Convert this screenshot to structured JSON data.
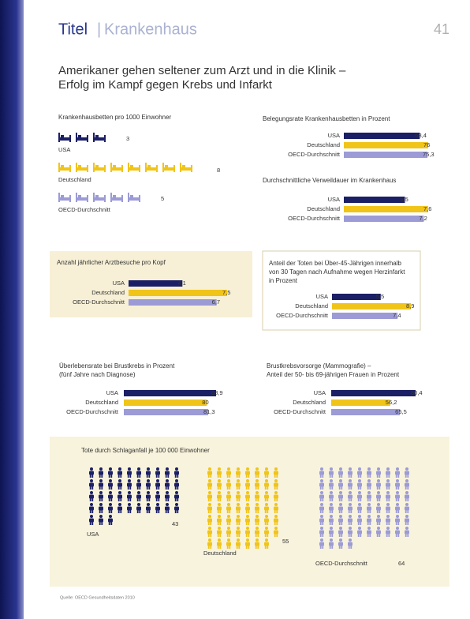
{
  "header": {
    "title": "Titel",
    "separator": "|",
    "section": "Krankenhaus",
    "page": "41"
  },
  "headline": [
    "Amerikaner gehen seltener zum Arzt und in die Klinik –",
    "Erfolg im Kampf gegen Krebs und Infarkt"
  ],
  "palette": [
    "#1b1f66",
    "#f0c419",
    "#9c9bd6"
  ],
  "chart_data": [
    {
      "type": "icons",
      "icon": "bed",
      "title": [
        "Krankenhausbetten pro 1000 Einwohner"
      ],
      "categories": [
        "USA",
        "Deutschland",
        "OECD-Durchschnitt"
      ],
      "values": [
        3,
        8,
        5
      ]
    },
    {
      "type": "bar",
      "title": [
        "Belegungsrate Krankenhausbetten in Prozent"
      ],
      "categories": [
        "USA",
        "Deutschland",
        "OECD-Durchschnitt"
      ],
      "values": [
        68.4,
        76,
        75.3
      ],
      "value_labels": [
        "68,4",
        "76",
        "75,3"
      ]
    },
    {
      "type": "bar",
      "title": [
        "Durchschnittliche Verweildauer im Krankenhaus"
      ],
      "categories": [
        "USA",
        "Deutschland",
        "OECD-Durchschnitt"
      ],
      "values": [
        5.5,
        7.6,
        7.2
      ],
      "value_labels": [
        "5,5",
        "7,6",
        "7,2"
      ]
    },
    {
      "type": "bar",
      "title": [
        "Anzahl jährlicher Arztbesuche pro Kopf"
      ],
      "categories": [
        "USA",
        "Deutschland",
        "OECD-Durchschnitt"
      ],
      "values": [
        4.1,
        7.5,
        6.7
      ],
      "value_labels": [
        "4,1",
        "7,5",
        "6,7"
      ]
    },
    {
      "type": "bar",
      "title": [
        "Anteil der Toten bei Über-45-Jährigen innerhalb",
        "von 30 Tagen nach Aufnahme wegen Herzinfarkt",
        "in Prozent"
      ],
      "categories": [
        "USA",
        "Deutschland",
        "OECD-Durchschnitt"
      ],
      "values": [
        5.5,
        8.9,
        7.4
      ],
      "value_labels": [
        "5,5",
        "8,9",
        "7,4"
      ]
    },
    {
      "type": "bar",
      "title": [
        "Überlebensrate bei Brustkrebs in Prozent",
        "(fünf Jahre nach Diagnose)"
      ],
      "categories": [
        "USA",
        "Deutschland",
        "OECD-Durchschnitt"
      ],
      "values": [
        88.9,
        80,
        81.3
      ],
      "value_labels": [
        "88,9",
        "80",
        "81,3"
      ]
    },
    {
      "type": "bar",
      "title": [
        "Brustkrebsvorsorge (Mammografie) –",
        "Anteil der 50- bis 69-jährigen Frauen in Prozent"
      ],
      "categories": [
        "USA",
        "Deutschland",
        "OECD-Durchschnitt"
      ],
      "values": [
        80.4,
        56.2,
        65.5
      ],
      "value_labels": [
        "80,4",
        "56,2",
        "65,5"
      ]
    },
    {
      "type": "icons",
      "icon": "person",
      "title": [
        "Tote durch Schlaganfall je 100 000 Einwohner"
      ],
      "categories": [
        "USA",
        "Deutschland",
        "OECD-Durchschnitt"
      ],
      "values": [
        43,
        55,
        64
      ]
    }
  ],
  "footer": "Quelle: OECD Gesundheitsdaten 2010"
}
